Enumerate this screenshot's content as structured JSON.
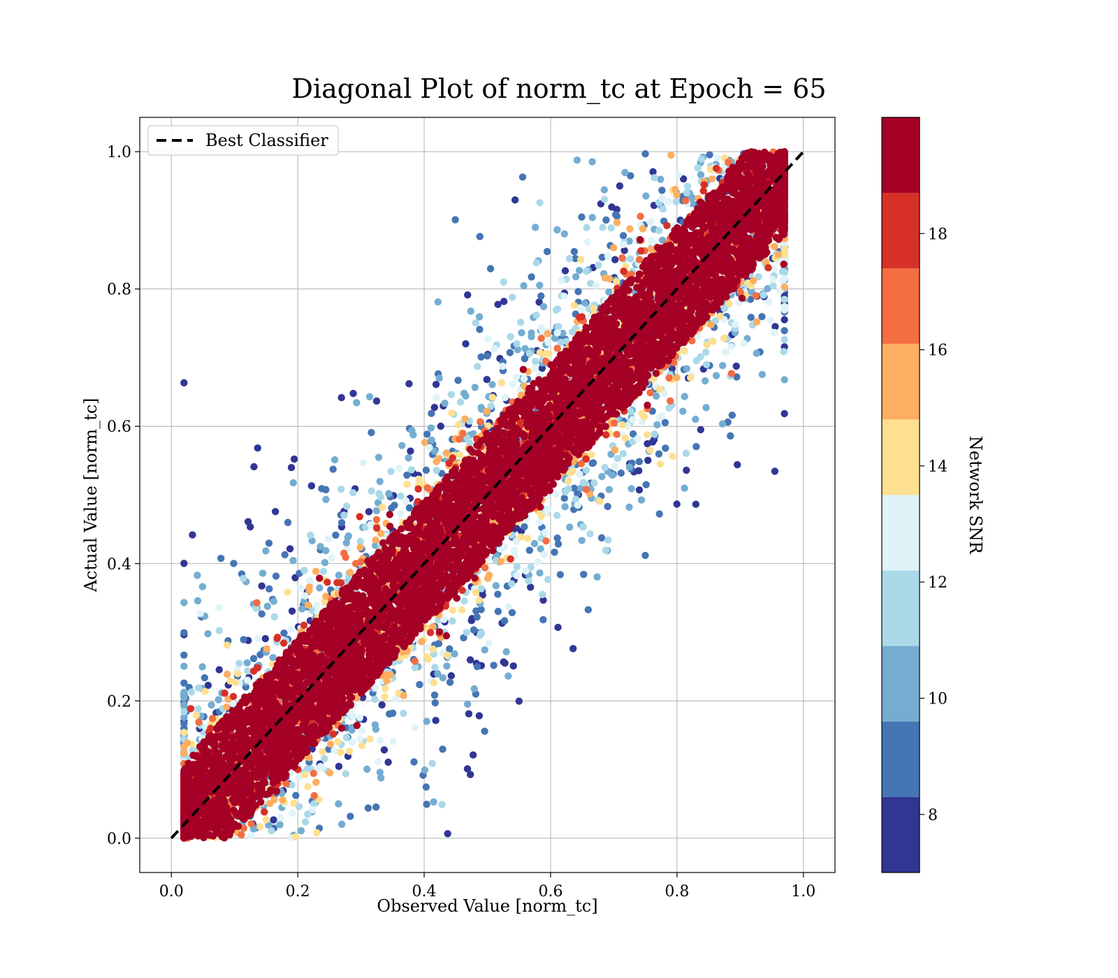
{
  "chart_data": {
    "type": "scatter",
    "title": "Diagonal Plot of norm_tc at Epoch = 65",
    "xlabel": "Observed Value [norm_tc]",
    "ylabel": "Actual Value [norm_tc]",
    "xlim": [
      -0.05,
      1.05
    ],
    "ylim": [
      -0.05,
      1.05
    ],
    "xticks": [
      "0.0",
      "0.2",
      "0.4",
      "0.6",
      "0.8",
      "1.0"
    ],
    "yticks": [
      "0.0",
      "0.2",
      "0.4",
      "0.6",
      "0.8",
      "1.0"
    ],
    "grid": true,
    "legend": {
      "placement": "upper-left",
      "entries": [
        "Best Classifier"
      ]
    },
    "reference_line": {
      "name": "Best Classifier",
      "style": "dashed",
      "color": "#000000",
      "x": [
        0.0,
        1.0
      ],
      "y": [
        0.0,
        1.0
      ]
    },
    "colorbar": {
      "label": "Network SNR",
      "range": [
        7,
        20
      ],
      "ticks": [
        "8",
        "10",
        "12",
        "14",
        "16",
        "18"
      ],
      "bins": [
        7,
        8.3,
        9.6,
        10.9,
        12.2,
        13.5,
        14.8,
        16.1,
        17.4,
        18.7,
        20
      ],
      "colors": [
        "#313695",
        "#4575b4",
        "#74add1",
        "#abd9e9",
        "#e0f3f8",
        "#fee090",
        "#fdae61",
        "#f46d43",
        "#d73027",
        "#a50026"
      ]
    },
    "scatter_description": {
      "relation": "predicted vs actual along y = x",
      "high_snr_band_halfwidth": 0.09,
      "low_snr_spread_halfwidth": 0.4,
      "x_coverage": [
        0.02,
        0.97
      ],
      "y_coverage": [
        0.0,
        1.0
      ]
    }
  }
}
